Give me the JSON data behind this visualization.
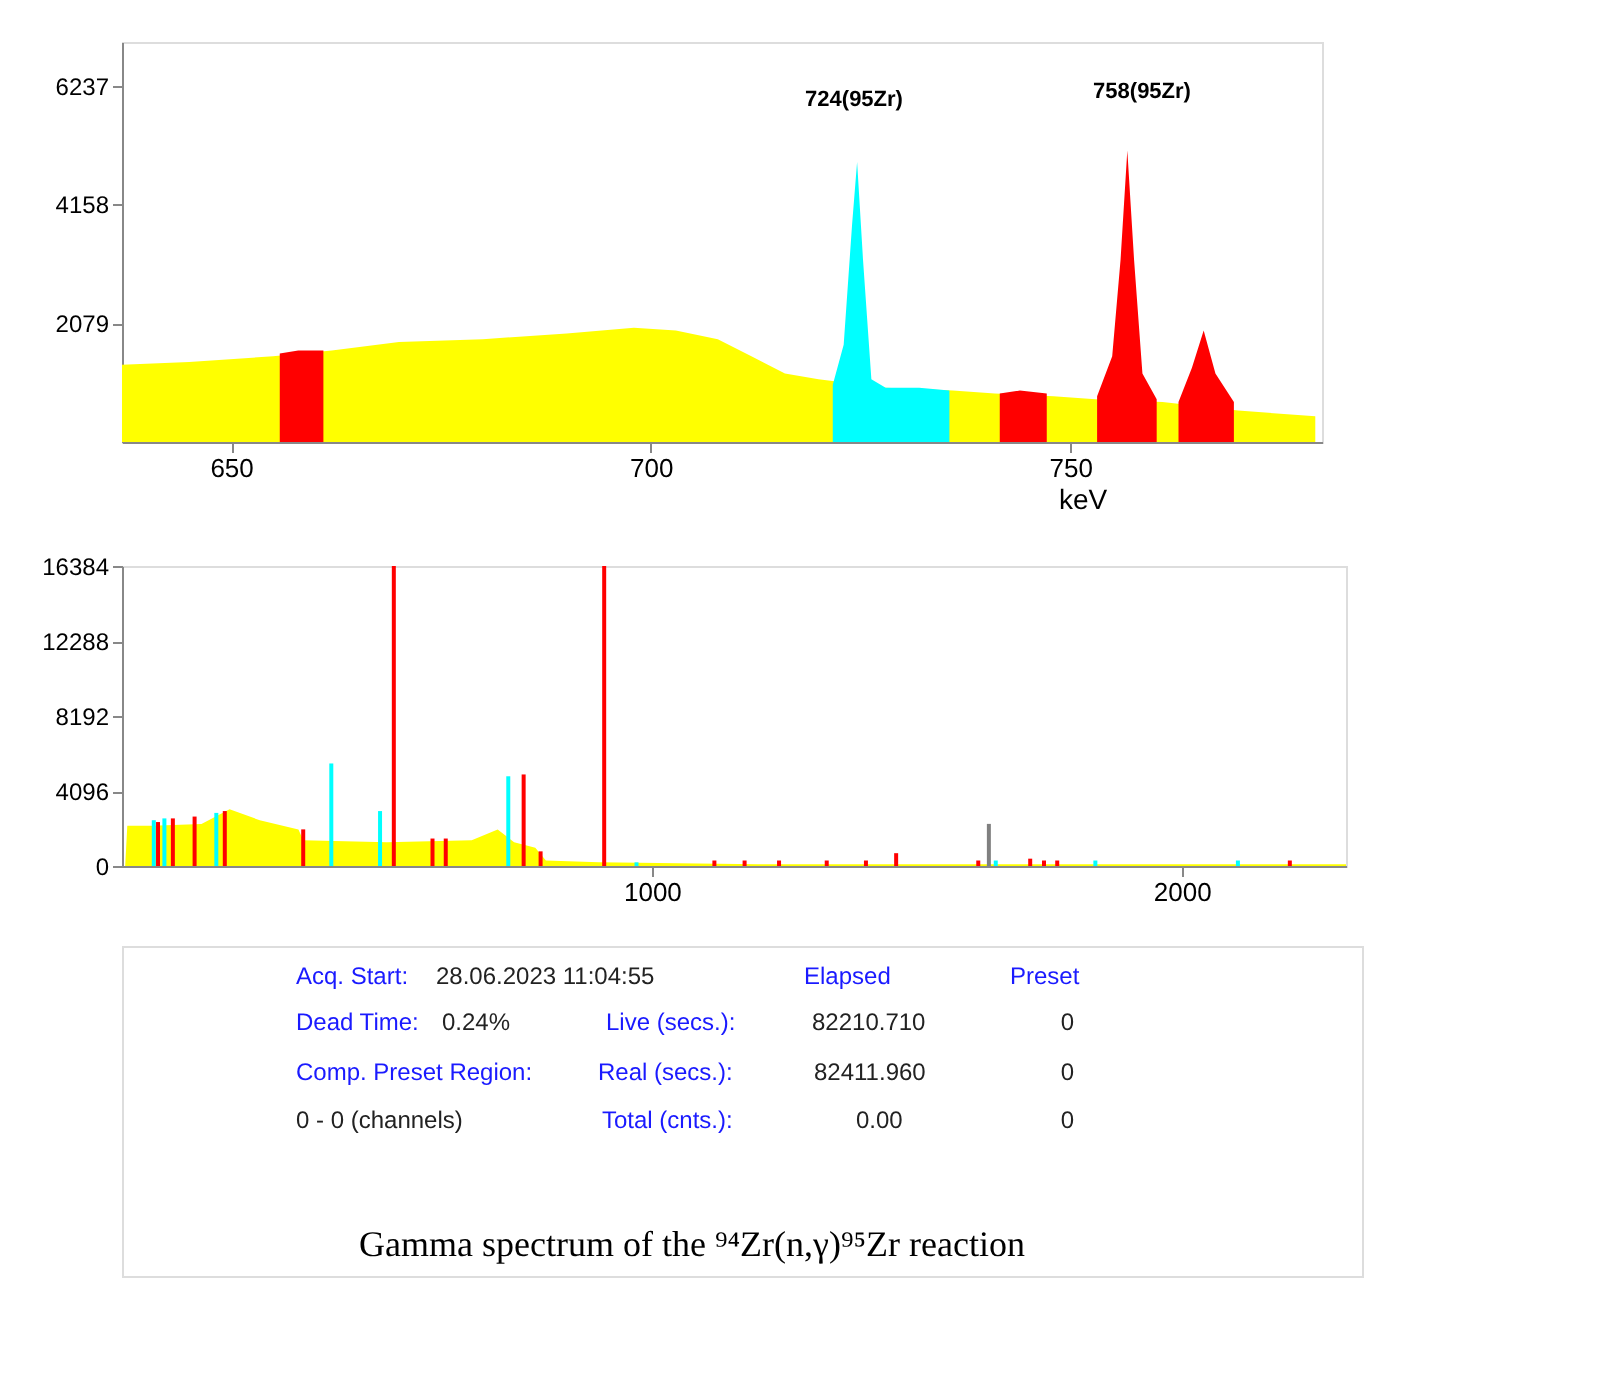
{
  "chart_data": [
    {
      "type": "area",
      "xlabel": "keV",
      "xlim": [
        637,
        780
      ],
      "ylim": [
        0,
        7000
      ],
      "xticks": [
        650,
        700,
        750
      ],
      "yticks": [
        2079,
        4158,
        6237
      ],
      "grid": false,
      "series": [
        {
          "type": "area",
          "color": "#ffff00",
          "x": [
            637,
            645,
            655,
            662,
            670,
            680,
            690,
            698,
            703,
            708,
            712,
            716,
            720,
            728,
            736,
            741,
            748,
            753,
            761,
            770,
            779.2
          ],
          "values": [
            1350,
            1400,
            1500,
            1600,
            1750,
            1800,
            1900,
            2000,
            1950,
            1800,
            1500,
            1200,
            1100,
            950,
            900,
            850,
            800,
            750,
            700,
            550,
            450
          ]
        },
        {
          "type": "area",
          "color": "#00ffff",
          "x": [
            721.7,
            723,
            724,
            724.6,
            725.3,
            726.3,
            728,
            732,
            735.6
          ],
          "values": [
            1000,
            1700,
            3800,
            4900,
            3200,
            1100,
            950,
            950,
            900
          ]
        },
        {
          "type": "area",
          "color": "#ff0000",
          "x": [
            655.8,
            658,
            661,
            662,
            741.6,
            744,
            747.2,
            750,
            753.2,
            755,
            756,
            756.8,
            757.6,
            758.6,
            760.3,
            761.5,
            762.9,
            764.5,
            765.9,
            767.3,
            769.5
          ],
          "values": [
            1550,
            1600,
            1600,
            null,
            850,
            900,
            850,
            null,
            800,
            1500,
            3200,
            5100,
            3200,
            1200,
            750,
            null,
            700,
            1300,
            1950,
            1200,
            700
          ]
        }
      ],
      "annotations": [
        "724(95Zr)",
        "758(95Zr)"
      ]
    },
    {
      "type": "area",
      "xlim": [
        0,
        2310
      ],
      "ylim": [
        0,
        16384
      ],
      "xticks": [
        1000,
        2000
      ],
      "yticks": [
        0,
        4096,
        8192,
        12288,
        16384
      ],
      "grid": false,
      "series": [
        {
          "type": "area",
          "color": "#ffff00",
          "x": [
            6,
            10,
            56,
            150,
            203,
            260,
            333,
            342,
            500,
            660,
            709,
            740,
            780,
            800,
            900,
            1200,
            1600,
            2000,
            2310
          ],
          "values": [
            0,
            2200,
            2200,
            2300,
            3100,
            2500,
            2000,
            1400,
            1300,
            1400,
            2000,
            1300,
            1000,
            300,
            200,
            100,
            100,
            100,
            100
          ]
        },
        {
          "type": "bar",
          "color": "#ff0000",
          "x": [
            68,
            96,
            137,
            194,
            342,
            513,
            586,
            611,
            758,
            790,
            910,
            1118,
            1175,
            1240,
            1330,
            1404,
            1461,
            1616,
            1714,
            1740,
            1765,
            2204
          ],
          "values": [
            2400,
            2600,
            2700,
            3000,
            2000,
            16384,
            1500,
            1500,
            5000,
            800,
            16384,
            300,
            300,
            300,
            300,
            300,
            700,
            300,
            400,
            300,
            300,
            300
          ]
        },
        {
          "type": "bar",
          "color": "#00ffff",
          "x": [
            60,
            80,
            178,
            395,
            487,
            729,
            971,
            1649,
            1837,
            2106
          ],
          "values": [
            2500,
            2600,
            2900,
            5600,
            3000,
            4900,
            200,
            300,
            300,
            300
          ]
        },
        {
          "type": "bar",
          "color": "#808080",
          "x": [
            1636
          ],
          "values": [
            2300
          ]
        }
      ]
    },
    {
      "type": "other",
      "annotations": [
        "Acq. Start:",
        "28.06.2023 11:04:55",
        "Elapsed",
        "Preset",
        "Dead Time:",
        "0.24%",
        "Live (secs.):",
        "82210.710",
        "0",
        "Comp. Preset Region:",
        "Real (secs.):",
        "82411.960",
        "0",
        "0 - 0 (channels)",
        "Total (cnts.):",
        "0.00",
        "0",
        "Gamma spectrum of the ⁹⁴Zr(n,γ)⁹⁵Zr reaction"
      ]
    }
  ]
}
